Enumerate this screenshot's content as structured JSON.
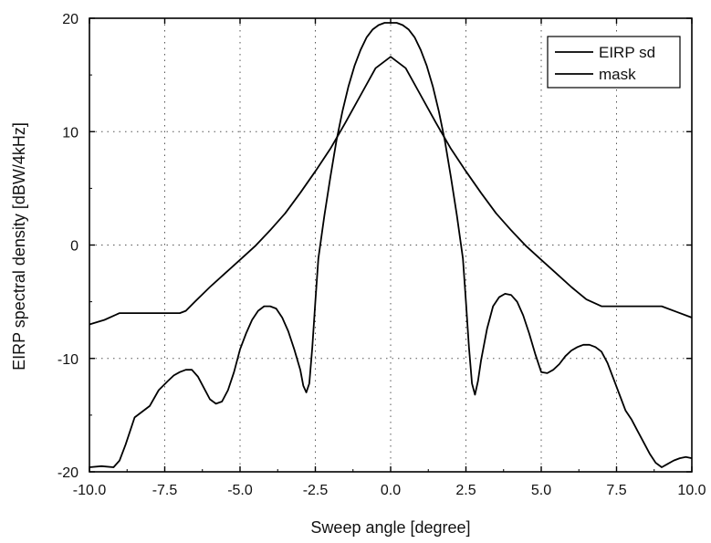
{
  "chart_data": {
    "type": "line",
    "title": "",
    "xlabel": "Sweep angle [degree]",
    "ylabel": "EIRP spectral density [dBW/4kHz]",
    "xlim": [
      -10,
      10
    ],
    "ylim": [
      -20,
      20
    ],
    "xticks": [
      -10,
      -7.5,
      -5,
      -2.5,
      0,
      2.5,
      5,
      7.5,
      10
    ],
    "xtick_labels": [
      "-10.0",
      "-7.5",
      "-5.0",
      "-2.5",
      "0.0",
      "2.5",
      "5.0",
      "7.5",
      "10.0"
    ],
    "yticks": [
      -20,
      -10,
      0,
      10,
      20
    ],
    "ytick_labels": [
      "-20",
      "-10",
      "0",
      "10",
      "20"
    ],
    "grid": true,
    "legend_position": "top-right",
    "series": [
      {
        "name": "EIRP sd",
        "color": "#000000",
        "x": [
          -10,
          -9.6,
          -9.2,
          -9.0,
          -8.8,
          -8.5,
          -8.2,
          -8.0,
          -7.7,
          -7.4,
          -7.2,
          -7.0,
          -6.8,
          -6.6,
          -6.4,
          -6.2,
          -6.0,
          -5.8,
          -5.6,
          -5.4,
          -5.2,
          -5.0,
          -4.8,
          -4.6,
          -4.4,
          -4.2,
          -4.0,
          -3.8,
          -3.6,
          -3.4,
          -3.2,
          -3.0,
          -2.9,
          -2.8,
          -2.7,
          -2.6,
          -2.5,
          -2.4,
          -2.2,
          -2.0,
          -1.8,
          -1.6,
          -1.4,
          -1.2,
          -1.0,
          -0.8,
          -0.6,
          -0.4,
          -0.2,
          0,
          0.2,
          0.4,
          0.6,
          0.8,
          1.0,
          1.2,
          1.4,
          1.6,
          1.8,
          2.0,
          2.2,
          2.4,
          2.5,
          2.6,
          2.7,
          2.8,
          2.9,
          3.0,
          3.2,
          3.4,
          3.6,
          3.8,
          4.0,
          4.2,
          4.4,
          4.6,
          4.8,
          5.0,
          5.2,
          5.4,
          5.6,
          5.8,
          6.0,
          6.2,
          6.4,
          6.6,
          6.8,
          7.0,
          7.2,
          7.4,
          7.6,
          7.8,
          8.0,
          8.2,
          8.4,
          8.6,
          8.8,
          9.0,
          9.2,
          9.4,
          9.6,
          9.8,
          10
        ],
        "y": [
          -19.6,
          -19.5,
          -19.6,
          -19.0,
          -17.6,
          -15.2,
          -14.6,
          -14.2,
          -12.8,
          -12.0,
          -11.5,
          -11.2,
          -11.0,
          -11.0,
          -11.6,
          -12.6,
          -13.6,
          -14.0,
          -13.8,
          -12.8,
          -11.2,
          -9.2,
          -7.8,
          -6.6,
          -5.8,
          -5.4,
          -5.4,
          -5.6,
          -6.4,
          -7.6,
          -9.2,
          -11.0,
          -12.4,
          -13.0,
          -12.2,
          -9.0,
          -5.0,
          -1.2,
          2.6,
          6.0,
          9.2,
          11.8,
          14.0,
          15.8,
          17.2,
          18.3,
          19.0,
          19.4,
          19.6,
          19.6,
          19.6,
          19.4,
          19.0,
          18.3,
          17.2,
          15.8,
          14.0,
          11.8,
          9.2,
          6.0,
          2.6,
          -1.2,
          -5.0,
          -9.0,
          -12.2,
          -13.2,
          -12.0,
          -10.2,
          -7.4,
          -5.4,
          -4.6,
          -4.3,
          -4.4,
          -5.0,
          -6.2,
          -7.8,
          -9.6,
          -11.2,
          -11.3,
          -11.0,
          -10.5,
          -9.8,
          -9.3,
          -9.0,
          -8.8,
          -8.8,
          -9.0,
          -9.4,
          -10.4,
          -11.8,
          -13.2,
          -14.6,
          -15.4,
          -16.4,
          -17.4,
          -18.4,
          -19.2,
          -19.6,
          -19.3,
          -19.0,
          -18.8,
          -18.7,
          -18.8
        ]
      },
      {
        "name": "mask",
        "color": "#000000",
        "x": [
          -10,
          -9.5,
          -9.0,
          -8.5,
          -8.0,
          -7.5,
          -7.0,
          -6.8,
          -6.5,
          -6.0,
          -5.5,
          -5.0,
          -4.5,
          -4.0,
          -3.5,
          -3.0,
          -2.5,
          -2.0,
          -1.5,
          -1.0,
          -0.5,
          0,
          0.5,
          1.0,
          1.5,
          2.0,
          2.5,
          3.0,
          3.5,
          4.0,
          4.5,
          5.0,
          5.5,
          6.0,
          6.5,
          7.0,
          7.5,
          8.0,
          8.5,
          9.0,
          9.5,
          10
        ],
        "y": [
          -7.0,
          -6.6,
          -6.0,
          -6.0,
          -6.0,
          -6.0,
          -6.0,
          -5.8,
          -5.0,
          -3.7,
          -2.5,
          -1.3,
          -0.1,
          1.3,
          2.8,
          4.6,
          6.5,
          8.5,
          10.8,
          13.2,
          15.6,
          16.6,
          15.6,
          13.2,
          10.8,
          8.5,
          6.5,
          4.6,
          2.8,
          1.3,
          -0.1,
          -1.3,
          -2.5,
          -3.7,
          -4.8,
          -5.4,
          -5.4,
          -5.4,
          -5.4,
          -5.4,
          -5.9,
          -6.4
        ]
      }
    ]
  }
}
